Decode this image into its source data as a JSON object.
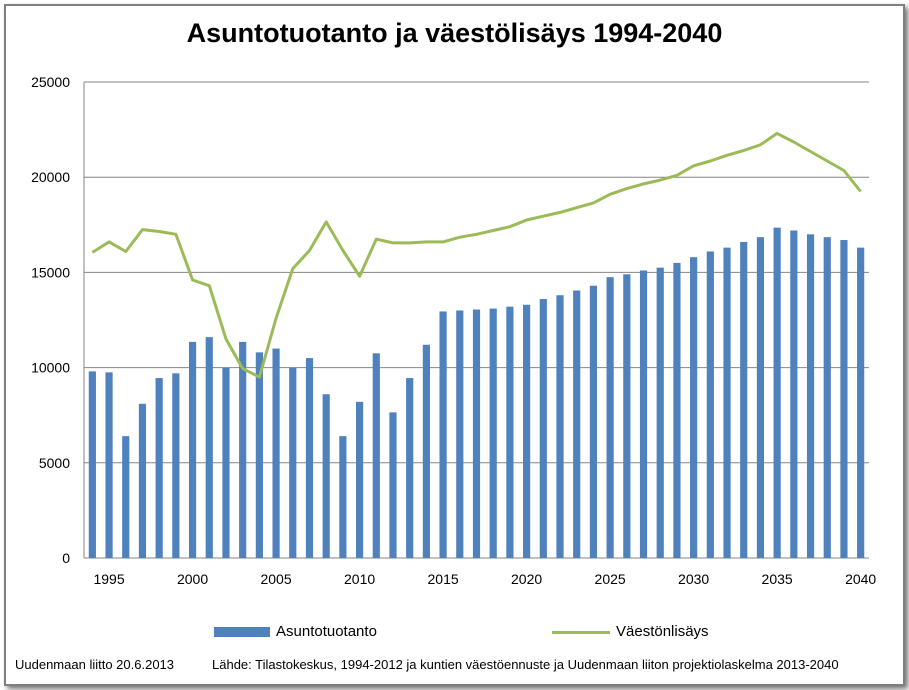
{
  "chart_data": {
    "type": "bar",
    "title": "Asuntotuotanto ja väestölisäys 1994-2040",
    "xlabel": "",
    "ylabel": "",
    "ylim": [
      0,
      25000
    ],
    "yticks": [
      0,
      5000,
      10000,
      15000,
      20000,
      25000
    ],
    "x_ticks": [
      "1995",
      "2000",
      "2005",
      "2010",
      "2015",
      "2020",
      "2025",
      "2030",
      "2035",
      "2040"
    ],
    "grid": true,
    "legend_position": "bottom",
    "x": [
      1994,
      1995,
      1996,
      1997,
      1998,
      1999,
      2000,
      2001,
      2002,
      2003,
      2004,
      2005,
      2006,
      2007,
      2008,
      2009,
      2010,
      2011,
      2012,
      2013,
      2014,
      2015,
      2016,
      2017,
      2018,
      2019,
      2020,
      2021,
      2022,
      2023,
      2024,
      2025,
      2026,
      2027,
      2028,
      2029,
      2030,
      2031,
      2032,
      2033,
      2034,
      2035,
      2036,
      2037,
      2038,
      2039,
      2040
    ],
    "series": [
      {
        "name": "Asuntotuotanto",
        "kind": "bar",
        "color": "#4f81bd",
        "values": [
          9800,
          9750,
          6400,
          8100,
          9450,
          9700,
          11350,
          11600,
          10000,
          11350,
          10800,
          11000,
          10000,
          10500,
          8600,
          6400,
          8200,
          10750,
          7650,
          9450,
          11200,
          12950,
          13000,
          13050,
          13100,
          13200,
          13300,
          13600,
          13800,
          14050,
          14300,
          14750,
          14900,
          15100,
          15250,
          15500,
          15800,
          16100,
          16300,
          16600,
          16850,
          17350,
          17200,
          17000,
          16850,
          16700,
          16300
        ]
      },
      {
        "name": "Väestönlisäys",
        "kind": "line",
        "color": "#9bbb59",
        "values": [
          16050,
          16600,
          16100,
          17250,
          17150,
          17000,
          14600,
          14300,
          11500,
          9950,
          9500,
          12600,
          15200,
          16150,
          17650,
          16150,
          14800,
          16750,
          16550,
          16550,
          16600,
          16600,
          16850,
          17000,
          17200,
          17400,
          17750,
          17950,
          18150,
          18400,
          18650,
          19100,
          19400,
          19650,
          19850,
          20100,
          20600,
          20850,
          21150,
          21400,
          21700,
          22300,
          21850,
          21350,
          20850,
          20350,
          19250
        ]
      }
    ]
  },
  "footer": {
    "left": "Uudenmaan liitto  20.6.2013",
    "right": "Lähde: Tilastokeskus, 1994-2012 ja kuntien väestöennuste ja  Uudenmaan liiton projektiolaskelma 2013-2040"
  },
  "colors": {
    "bar": "#4f81bd",
    "line": "#9bbb59",
    "grid": "#868686"
  }
}
